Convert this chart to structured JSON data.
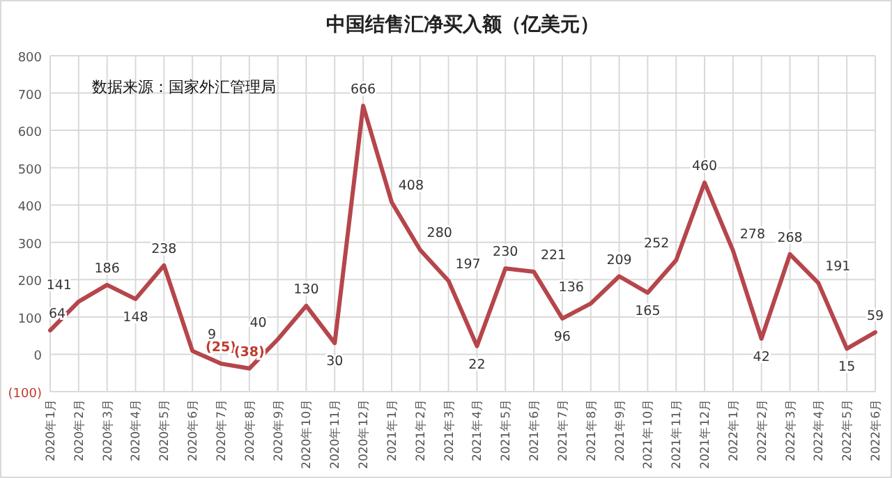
{
  "chart_data": {
    "type": "line",
    "title": "中国结售汇净买入额（亿美元）",
    "annotations": [
      "数据来源：国家外汇管理局"
    ],
    "categories": [
      "2020年1月",
      "2020年2月",
      "2020年3月",
      "2020年4月",
      "2020年5月",
      "2020年6月",
      "2020年7月",
      "2020年8月",
      "2020年9月",
      "2020年10月",
      "2020年11月",
      "2020年12月",
      "2021年1月",
      "2021年2月",
      "2021年3月",
      "2021年4月",
      "2021年5月",
      "2021年6月",
      "2021年7月",
      "2021年8月",
      "2021年9月",
      "2021年10月",
      "2021年11月",
      "2021年12月",
      "2022年1月",
      "2022年2月",
      "2022年3月",
      "2022年4月",
      "2022年5月",
      "2022年6月"
    ],
    "series": [
      {
        "color": "#b5464b",
        "values": [
          64,
          141,
          186,
          148,
          238,
          9,
          -25,
          -38,
          40,
          130,
          30,
          666,
          408,
          280,
          197,
          22,
          230,
          221,
          96,
          136,
          209,
          165,
          252,
          460,
          278,
          42,
          268,
          191,
          15,
          59
        ],
        "value_labels": [
          "64",
          "141",
          "186",
          "148",
          "238",
          "9",
          "(25)",
          "(38)",
          "40",
          "130",
          "30",
          "666",
          "408",
          "280",
          "197",
          "22",
          "230",
          "221",
          "96",
          "136",
          "209",
          "165",
          "252",
          "460",
          "278",
          "42",
          "268",
          "191",
          "15",
          "59"
        ]
      }
    ],
    "ylim": [
      -100,
      800
    ],
    "yticks": [
      {
        "value": -100,
        "label": "(100)"
      },
      0,
      100,
      200,
      300,
      400,
      500,
      600,
      700,
      800
    ],
    "grid": true
  }
}
